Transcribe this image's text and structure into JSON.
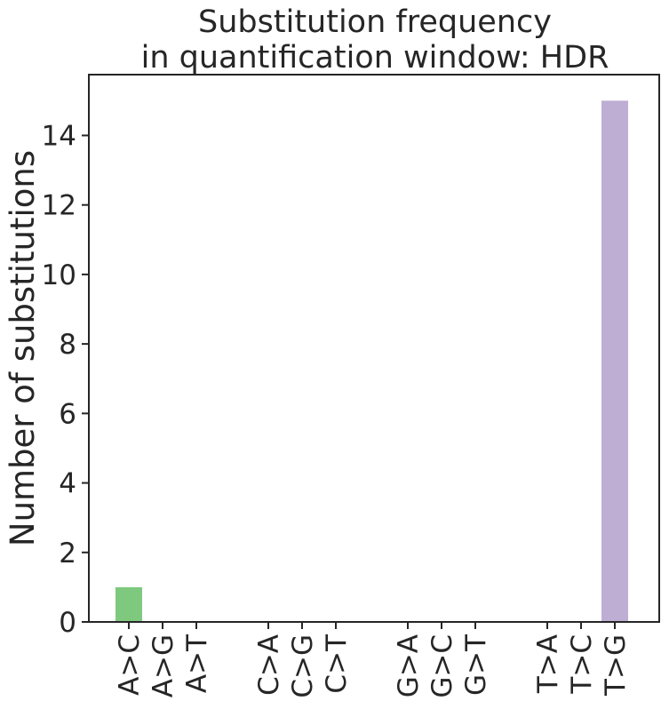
{
  "chart_data": {
    "type": "bar",
    "title_lines": [
      "Substitution frequency",
      "in quantification window: HDR"
    ],
    "xlabel": "",
    "ylabel": "Number of substitutions",
    "ylim": [
      0,
      15.75
    ],
    "yticks": [
      0,
      2,
      4,
      6,
      8,
      10,
      12,
      14
    ],
    "grid": false,
    "legend": "none",
    "categories": [
      "A>C",
      "A>G",
      "A>T",
      "C>A",
      "C>G",
      "C>T",
      "G>A",
      "G>C",
      "G>T",
      "T>A",
      "T>C",
      "T>G"
    ],
    "values": [
      1,
      0,
      0,
      0,
      0,
      0,
      0,
      0,
      0,
      0,
      0,
      15
    ],
    "bar_colors": [
      "#7fc97f",
      "#7fc97f",
      "#7fc97f",
      "#beaed4",
      "#beaed4",
      "#beaed4",
      "#fdc086",
      "#fdc086",
      "#fdc086",
      "#beaed4",
      "#beaed4",
      "#beaed4"
    ]
  }
}
